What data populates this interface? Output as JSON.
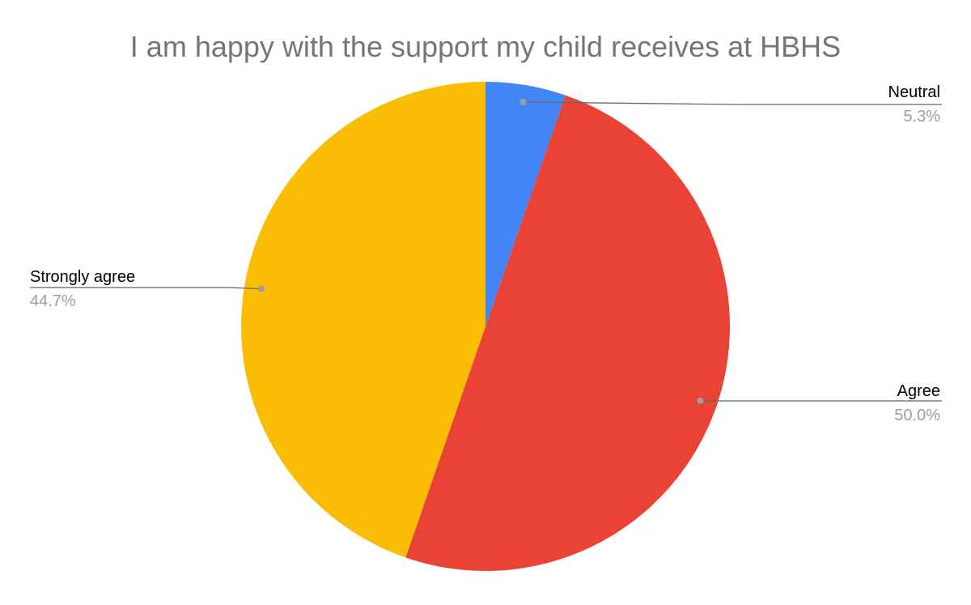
{
  "chart_data": {
    "type": "pie",
    "title": "I am happy with the support my child receives at HBHS",
    "start_angle_deg": 0,
    "direction": "clockwise",
    "slices": [
      {
        "label": "Neutral",
        "value": 5.3,
        "percent_label": "5.3%",
        "color": "#4285F4"
      },
      {
        "label": "Agree",
        "value": 50.0,
        "percent_label": "50.0%",
        "color": "#EA4335"
      },
      {
        "label": "Strongly agree",
        "value": 44.7,
        "percent_label": "44.7%",
        "color": "#FBBC04"
      }
    ],
    "legend": "none",
    "labels": "outside-with-leader-lines"
  }
}
